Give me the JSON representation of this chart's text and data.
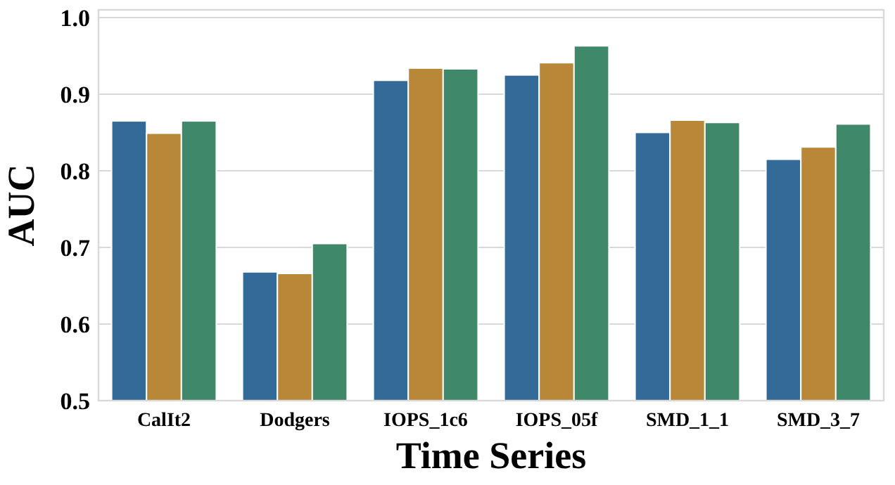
{
  "chart_data": {
    "type": "bar",
    "xlabel": "Time Series",
    "ylabel": "AUC",
    "categories": [
      "CalIt2",
      "Dodgers",
      "IOPS_1c6",
      "IOPS_05f",
      "SMD_1_1",
      "SMD_3_7"
    ],
    "series": [
      {
        "color": "#346a97",
        "values": [
          0.865,
          0.668,
          0.918,
          0.925,
          0.85,
          0.815
        ]
      },
      {
        "color": "#b88738",
        "values": [
          0.849,
          0.666,
          0.934,
          0.941,
          0.866,
          0.831
        ]
      },
      {
        "color": "#3f886a",
        "values": [
          0.865,
          0.705,
          0.933,
          0.963,
          0.863,
          0.861
        ]
      }
    ],
    "ylim": [
      0.5,
      1.01
    ],
    "yticks": [
      {
        "value": 0.5,
        "label": "0.5"
      },
      {
        "value": 0.6,
        "label": "0.6"
      },
      {
        "value": 0.7,
        "label": "0.7"
      },
      {
        "value": 0.8,
        "label": "0.8"
      },
      {
        "value": 0.9,
        "label": "0.9"
      },
      {
        "value": 1.0,
        "label": "1.0"
      }
    ],
    "grid": "y"
  }
}
